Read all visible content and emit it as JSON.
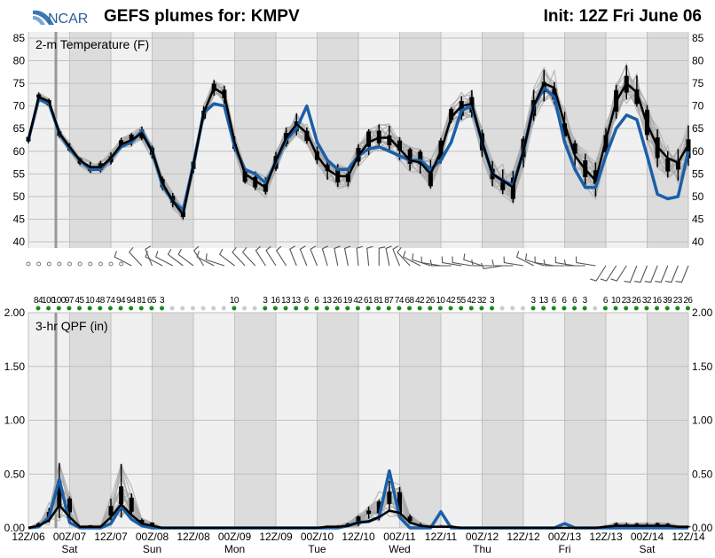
{
  "header": {
    "logo_text": "NCAR",
    "title": "GEFS plumes for: KMPV",
    "init": "Init: 12Z Fri June 06"
  },
  "colors": {
    "mean": "#000000",
    "control": "#1a5fa8",
    "members": "#a8a8a8",
    "night": "#dcdcdc",
    "day": "#f0f0f0",
    "prob_dot": "#1a8a1a",
    "prob_dot_zero": "#cccccc"
  },
  "chart_data": [
    {
      "type": "line",
      "title": "2-m Temperature (F)",
      "ylim": [
        40,
        85
      ],
      "yticks": [
        "85",
        "80",
        "75",
        "70",
        "65",
        "60",
        "55",
        "50",
        "45",
        "40"
      ],
      "x_step_hours": 3,
      "series": [
        {
          "name": "ensemble mean",
          "values": [
            62.5,
            72,
            71,
            64,
            61,
            58,
            56.5,
            56.5,
            58.5,
            61.5,
            62.5,
            64,
            60,
            53,
            49,
            46,
            57,
            68.5,
            74,
            72.5,
            62,
            55,
            53.5,
            52,
            58,
            63,
            66,
            64,
            59,
            56,
            54.5,
            54.5,
            59,
            62,
            63,
            63,
            60.5,
            58,
            57.5,
            55,
            60,
            67.5,
            70,
            70.5,
            62,
            55,
            53.5,
            52,
            60,
            70,
            75,
            74,
            66,
            59,
            56,
            53.5,
            62.5,
            71,
            75,
            73,
            66,
            61,
            58.5,
            57.5,
            61.5
          ]
        },
        {
          "name": "control",
          "values": [
            62.5,
            71.5,
            70.5,
            64,
            60.5,
            58,
            56,
            56,
            58.5,
            61,
            62,
            64.5,
            60,
            52.5,
            49,
            47,
            57,
            68.5,
            70.5,
            70,
            61,
            56,
            55,
            53,
            57.5,
            62.5,
            65,
            70,
            62,
            58,
            56,
            56,
            59,
            60.5,
            61,
            60,
            59,
            58,
            58,
            56,
            58,
            62,
            69,
            70,
            62,
            55,
            53.5,
            52.5,
            60,
            70,
            74,
            72,
            62,
            56,
            52,
            52,
            59,
            65,
            68,
            67,
            59,
            50.5,
            49.5,
            50,
            60
          ]
        }
      ]
    },
    {
      "type": "line",
      "title": "3-hr QPF (in)",
      "ylim": [
        0,
        2
      ],
      "yticks": [
        "2.00",
        "1.50",
        "1.00",
        "0.50",
        "0.00"
      ],
      "series": [
        {
          "name": "ensemble mean",
          "values": [
            0,
            0.02,
            0.07,
            0.21,
            0.1,
            0.01,
            0.01,
            0.01,
            0.1,
            0.22,
            0.12,
            0.04,
            0.02,
            0,
            0,
            0,
            0,
            0,
            0,
            0,
            0,
            0,
            0,
            0,
            0,
            0,
            0,
            0,
            0,
            0.01,
            0.01,
            0.02,
            0.05,
            0.06,
            0.1,
            0.16,
            0.14,
            0.05,
            0.02,
            0.01,
            0.01,
            0.01,
            0,
            0,
            0,
            0,
            0,
            0,
            0,
            0,
            0,
            0,
            0,
            0,
            0,
            0,
            0.01,
            0.02,
            0.02,
            0.02,
            0.02,
            0.02,
            0.02,
            0.01,
            0.01
          ]
        },
        {
          "name": "control",
          "values": [
            0,
            0.01,
            0.1,
            0.45,
            0.05,
            0,
            0,
            0,
            0.04,
            0.2,
            0.08,
            0.02,
            0,
            0,
            0,
            0,
            0,
            0,
            0,
            0,
            0,
            0,
            0,
            0,
            0,
            0,
            0,
            0,
            0,
            0,
            0,
            0.02,
            0.05,
            0.06,
            0.1,
            0.53,
            0.1,
            0,
            0,
            0,
            0.15,
            0,
            0,
            0,
            0,
            0,
            0,
            0,
            0,
            0,
            0,
            0,
            0.04,
            0,
            0,
            0,
            0,
            0,
            0,
            0,
            0,
            0,
            0,
            0,
            0
          ]
        }
      ]
    }
  ],
  "precip_probability": [
    "84",
    "100",
    "100",
    "97",
    "45",
    "10",
    "48",
    "74",
    "94",
    "94",
    "81",
    "65",
    "3",
    "",
    "",
    "",
    "",
    "",
    "",
    "10",
    "",
    "",
    "3",
    "16",
    "13",
    "13",
    "6",
    "6",
    "13",
    "26",
    "19",
    "42",
    "61",
    "81",
    "87",
    "74",
    "68",
    "42",
    "26",
    "10",
    "42",
    "55",
    "42",
    "32",
    "3",
    "",
    "",
    "",
    "3",
    "13",
    "6",
    "6",
    "6",
    "3",
    "",
    "6",
    "10",
    "23",
    "26",
    "32",
    "16",
    "39",
    "23",
    "26"
  ],
  "wind": {
    "calm_count": 10,
    "directions": [
      300,
      320,
      340,
      300,
      300,
      310,
      310,
      330,
      300,
      290,
      310,
      320,
      320,
      330,
      330,
      330,
      340,
      340,
      340,
      345,
      350,
      350,
      355,
      355,
      360,
      350,
      340,
      320,
      300,
      290,
      280,
      270,
      280,
      280,
      290,
      270,
      260,
      270,
      280,
      300,
      290,
      280,
      270,
      280,
      270,
      280,
      210,
      210,
      210,
      200,
      200,
      200,
      200,
      200,
      200
    ]
  },
  "x_axis": {
    "ticks": [
      "12Z/06",
      "00Z/07",
      "12Z/07",
      "00Z/08",
      "12Z/08",
      "00Z/09",
      "12Z/09",
      "00Z/10",
      "12Z/10",
      "00Z/11",
      "12Z/11",
      "00Z/12",
      "12Z/12",
      "00Z/13",
      "12Z/13",
      "00Z/14",
      "12Z/14"
    ],
    "days": [
      "",
      "Sat",
      "",
      "Sun",
      "",
      "Mon",
      "",
      "Tue",
      "",
      "Wed",
      "",
      "Thu",
      "",
      "Fri",
      "",
      "Sat",
      ""
    ]
  }
}
